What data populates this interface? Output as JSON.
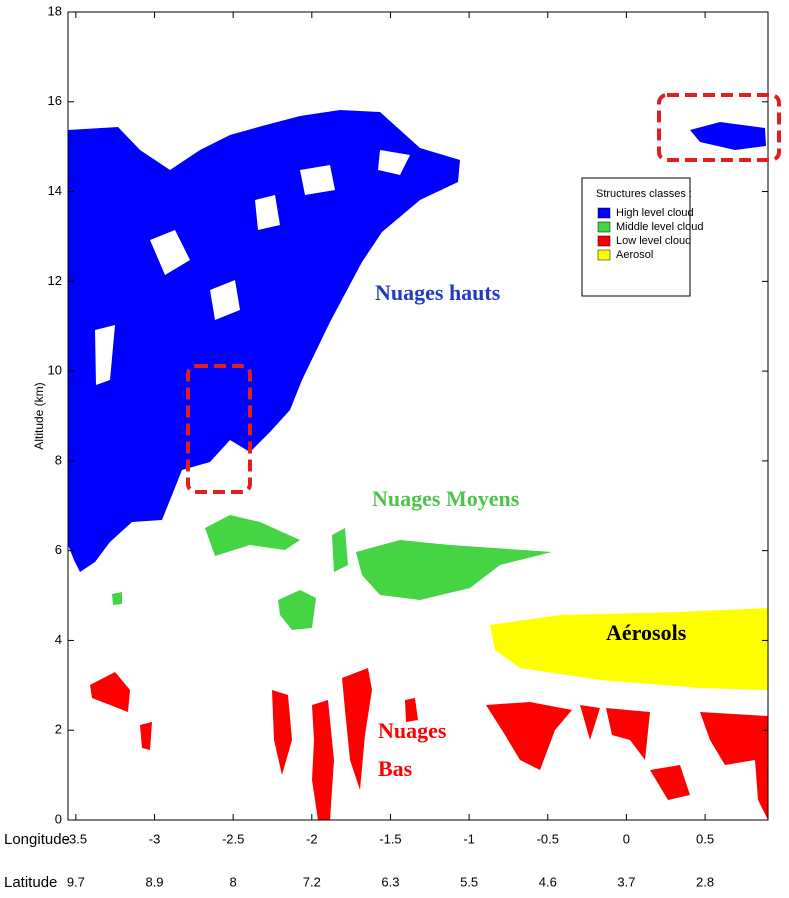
{
  "chart_data": {
    "type": "curtain",
    "ylabel": "Altitude (km)",
    "ylim": [
      0,
      18
    ],
    "yticks": [
      0,
      2,
      4,
      6,
      8,
      10,
      12,
      14,
      16,
      18
    ],
    "xlim": [
      -3.55,
      0.9
    ],
    "xlabel": "Longitude",
    "xticks": [
      -3.5,
      -3,
      -2.5,
      -2,
      -1.5,
      -1,
      -0.5,
      0,
      0.5
    ],
    "secondary_xlabel": "Latitude",
    "secondary_xticklabels": [
      9.7,
      8.9,
      8,
      7.2,
      6.3,
      5.5,
      4.6,
      3.7,
      2.8
    ],
    "legend": {
      "title": "Structures classes :",
      "items": [
        {
          "name": "High level cloud",
          "color": "#0000ff"
        },
        {
          "name": "Middle level cloud",
          "color": "#44d444"
        },
        {
          "name": "Low level cloud",
          "color": "#ff0000"
        },
        {
          "name": "Aerosol",
          "color": "#ffff00"
        }
      ]
    },
    "annotations": [
      {
        "text": "Nuages hauts",
        "color": "#1f3cc0"
      },
      {
        "text": "Nuages Moyens",
        "color": "#4cc44c"
      },
      {
        "text": "Aérosols",
        "color": "#000000"
      },
      {
        "text": "Nuages\nBas",
        "color": "#ff0000"
      }
    ]
  }
}
